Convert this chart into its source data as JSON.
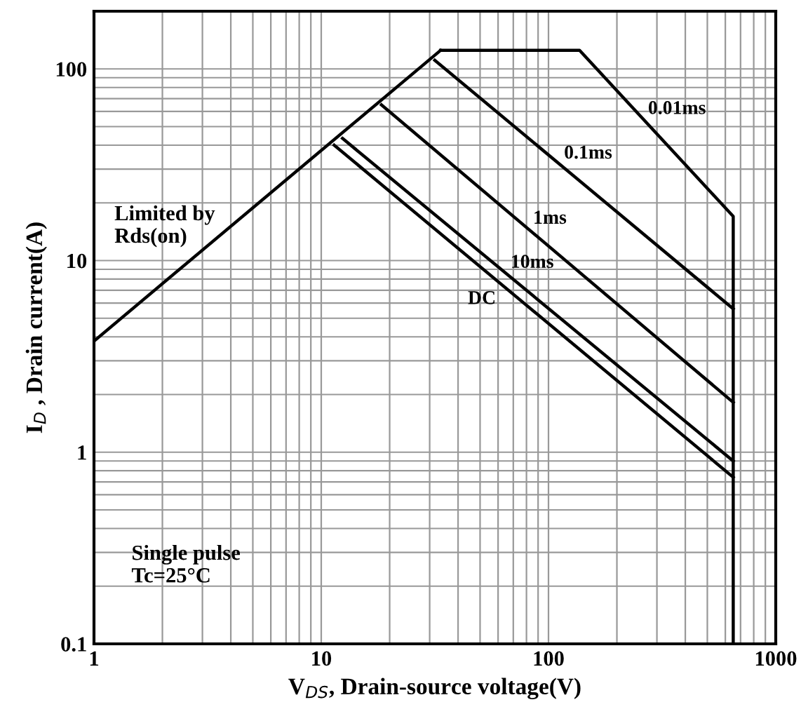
{
  "chart_data": {
    "type": "line",
    "xlabel": "V$_{DS}$, Drain-source voltage(V)",
    "ylabel": "I$_{D}$ , Drain current(A)",
    "log": "xy",
    "xlim": [
      1,
      1000
    ],
    "ylim": [
      0.1,
      200
    ],
    "xticks": [
      1,
      10,
      100,
      1000
    ],
    "yticks": [
      0.1,
      1,
      10,
      100
    ],
    "grid": true,
    "legend": false,
    "marker": "none",
    "line_style": "solid",
    "series": [
      {
        "name": "Limited by\nRds(on)",
        "color": "#000000",
        "x": [
          1,
          33.5
        ],
        "values": [
          3.8,
          125
        ]
      },
      {
        "name": "0.01ms",
        "color": "#000000",
        "x": [
          33.5,
          137,
          650,
          650
        ],
        "values": [
          125,
          125,
          17,
          0.1
        ]
      },
      {
        "name": "0.1ms",
        "color": "#000000",
        "x": [
          31.6,
          650
        ],
        "values": [
          111,
          5.6
        ]
      },
      {
        "name": "1ms",
        "color": "#000000",
        "x": [
          18.4,
          650
        ],
        "values": [
          65,
          1.82
        ]
      },
      {
        "name": "10ms",
        "color": "#000000",
        "x": [
          12.4,
          650
        ],
        "values": [
          43.4,
          0.9
        ]
      },
      {
        "name": "DC",
        "color": "#000000",
        "x": [
          11.4,
          650
        ],
        "values": [
          40,
          0.74
        ]
      }
    ],
    "annotations": [
      "Single pulse\nTc=25°C"
    ]
  }
}
